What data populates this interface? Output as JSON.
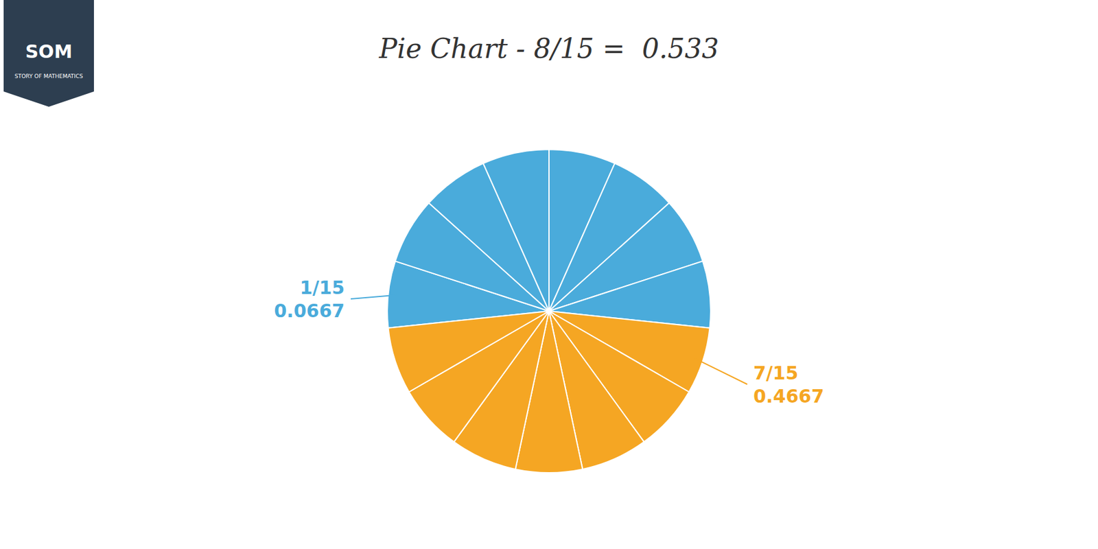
{
  "chart_data": {
    "type": "pie",
    "title": "Pie Chart - 8/15 =  0.533",
    "values": [
      1,
      1,
      1,
      1,
      1,
      1,
      1,
      1,
      1,
      1,
      1,
      1,
      1,
      1,
      1
    ],
    "colors": [
      "#4AABDB",
      "#4AABDB",
      "#4AABDB",
      "#4AABDB",
      "#4AABDB",
      "#4AABDB",
      "#4AABDB",
      "#4AABDB",
      "#F5A623",
      "#F5A623",
      "#F5A623",
      "#F5A623",
      "#F5A623",
      "#F5A623",
      "#F5A623"
    ],
    "annotations": [
      {
        "text": "SOM"
      },
      {
        "text": "STORY OF MATHEMATICS"
      },
      {
        "text": "1/15",
        "color": "#4AABDB"
      },
      {
        "text": "0.0667",
        "color": "#4AABDB"
      },
      {
        "text": "7/15",
        "color": "#F5A623"
      },
      {
        "text": "0.4667",
        "color": "#F5A623"
      }
    ]
  }
}
